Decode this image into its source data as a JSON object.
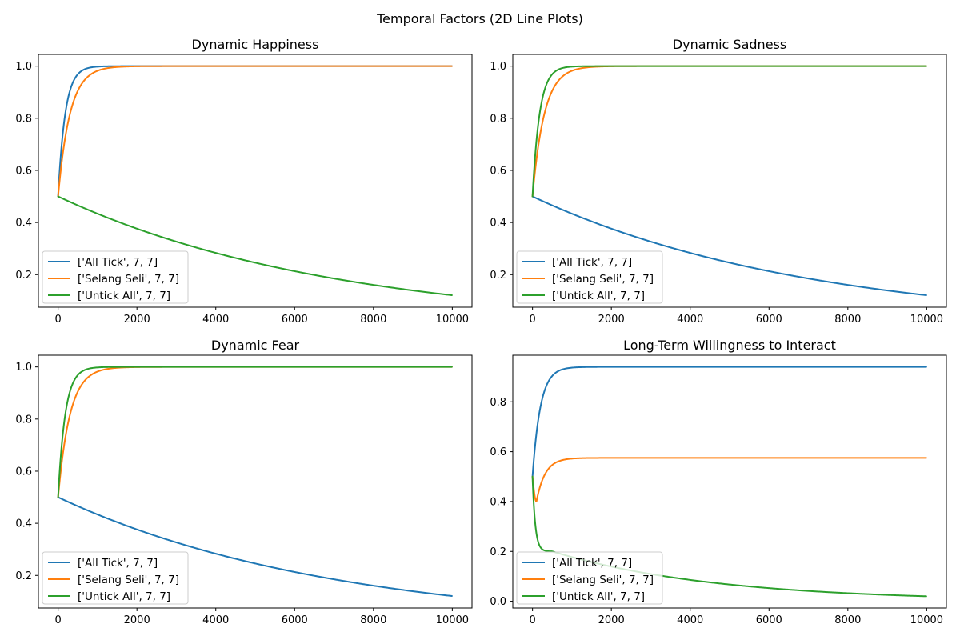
{
  "figure": {
    "suptitle": "Temporal Factors (2D Line Plots)"
  },
  "colors": {
    "All Tick": "#1f77b4",
    "Selang Seli": "#ff7f0e",
    "Unticked All": "#2ca02c"
  },
  "chart_data": [
    {
      "type": "line",
      "title": "Dynamic Happiness",
      "xlim": [
        -500,
        10500
      ],
      "ylim": [
        0.075,
        1.045
      ],
      "xticks": [
        0,
        2000,
        4000,
        6000,
        8000,
        10000
      ],
      "yticks": [
        0.2,
        0.4,
        0.6,
        0.8,
        1.0
      ],
      "legend": "lower-left",
      "series": [
        {
          "name": "['All Tick', 7, 7]",
          "color": "#1f77b4",
          "shape": "rise",
          "start": 0.5,
          "end": 1.0,
          "tau": 180
        },
        {
          "name": "['Selang Seli', 7, 7]",
          "color": "#ff7f0e",
          "shape": "rise",
          "start": 0.5,
          "end": 1.0,
          "tau": 300
        },
        {
          "name": "['Untick All', 7, 7]",
          "color": "#2ca02c",
          "shape": "decay",
          "start": 0.5,
          "k": 0.000142
        }
      ]
    },
    {
      "type": "line",
      "title": "Dynamic Sadness",
      "xlim": [
        -500,
        10500
      ],
      "ylim": [
        0.075,
        1.045
      ],
      "xticks": [
        0,
        2000,
        4000,
        6000,
        8000,
        10000
      ],
      "yticks": [
        0.2,
        0.4,
        0.6,
        0.8,
        1.0
      ],
      "legend": "lower-left",
      "series": [
        {
          "name": "['All Tick', 7, 7]",
          "color": "#1f77b4",
          "shape": "decay",
          "start": 0.5,
          "k": 0.000142
        },
        {
          "name": "['Selang Seli', 7, 7]",
          "color": "#ff7f0e",
          "shape": "rise",
          "start": 0.5,
          "end": 1.0,
          "tau": 300
        },
        {
          "name": "['Untick All', 7, 7]",
          "color": "#2ca02c",
          "shape": "rise",
          "start": 0.5,
          "end": 1.0,
          "tau": 180
        }
      ]
    },
    {
      "type": "line",
      "title": "Dynamic Fear",
      "xlim": [
        -500,
        10500
      ],
      "ylim": [
        0.075,
        1.045
      ],
      "xticks": [
        0,
        2000,
        4000,
        6000,
        8000,
        10000
      ],
      "yticks": [
        0.2,
        0.4,
        0.6,
        0.8,
        1.0
      ],
      "legend": "lower-left",
      "series": [
        {
          "name": "['All Tick', 7, 7]",
          "color": "#1f77b4",
          "shape": "decay",
          "start": 0.5,
          "k": 0.000142
        },
        {
          "name": "['Selang Seli', 7, 7]",
          "color": "#ff7f0e",
          "shape": "rise",
          "start": 0.5,
          "end": 1.0,
          "tau": 300
        },
        {
          "name": "['Untick All', 7, 7]",
          "color": "#2ca02c",
          "shape": "rise",
          "start": 0.5,
          "end": 1.0,
          "tau": 180
        }
      ]
    },
    {
      "type": "line",
      "title": "Long-Term Willingness to Interact",
      "xlim": [
        -500,
        10500
      ],
      "ylim": [
        -0.027,
        0.987
      ],
      "xticks": [
        0,
        2000,
        4000,
        6000,
        8000,
        10000
      ],
      "yticks": [
        0.0,
        0.2,
        0.4,
        0.6,
        0.8
      ],
      "legend": "lower-left",
      "series": [
        {
          "name": "['All Tick', 7, 7]",
          "color": "#1f77b4",
          "shape": "rise",
          "start": 0.5,
          "end": 0.94,
          "tau": 200
        },
        {
          "name": "['Selang Seli', 7, 7]",
          "color": "#ff7f0e",
          "shape": "dip",
          "start": 0.5,
          "end": 0.575,
          "min_at": 100,
          "min_value": 0.4
        },
        {
          "name": "['Untick All', 7, 7]",
          "color": "#2ca02c",
          "shape": "drop_decay",
          "start": 0.5,
          "end": 0.02,
          "knee_x": 500,
          "knee_y": 0.2
        }
      ]
    }
  ]
}
